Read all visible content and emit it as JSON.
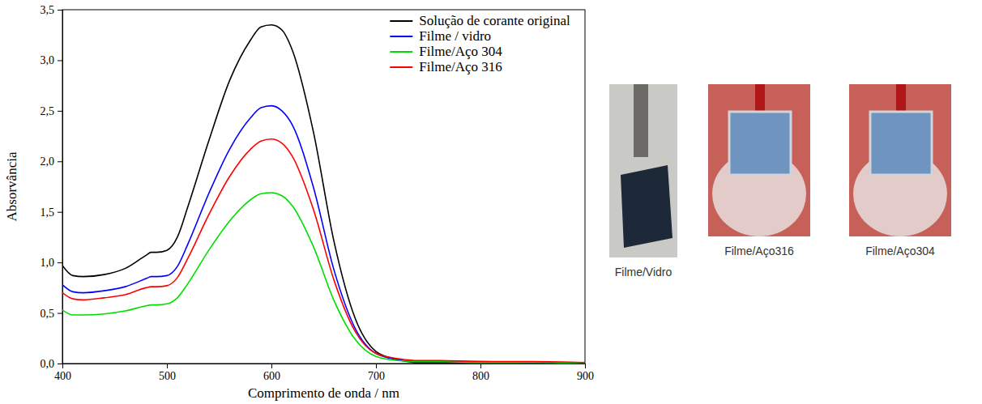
{
  "chart_data": {
    "type": "line",
    "x_label": "Comprimento de onda / nm",
    "y_label": "Absorvância",
    "x": [
      400,
      410,
      420,
      440,
      460,
      480,
      485,
      490,
      500,
      510,
      520,
      540,
      560,
      580,
      590,
      600,
      610,
      620,
      640,
      660,
      680,
      700,
      720,
      740,
      760,
      800,
      850,
      900
    ],
    "series": [
      {
        "name": "Solução de corante original",
        "color": "#000000",
        "values": [
          0.97,
          0.87,
          0.86,
          0.88,
          0.94,
          1.07,
          1.1,
          1.1,
          1.12,
          1.25,
          1.55,
          2.2,
          2.8,
          3.2,
          3.33,
          3.35,
          3.3,
          3.1,
          2.3,
          1.2,
          0.45,
          0.12,
          0.04,
          0.01,
          0.01,
          0.01,
          0.01,
          0.0
        ]
      },
      {
        "name": "Filme / vidro",
        "color": "#0000ff",
        "values": [
          0.78,
          0.71,
          0.7,
          0.72,
          0.76,
          0.84,
          0.86,
          0.86,
          0.87,
          0.96,
          1.18,
          1.68,
          2.12,
          2.43,
          2.53,
          2.55,
          2.5,
          2.36,
          1.75,
          0.92,
          0.35,
          0.1,
          0.04,
          0.02,
          0.02,
          0.02,
          0.01,
          0.0
        ]
      },
      {
        "name": "Filme/Aço 304",
        "color": "#00dd00",
        "values": [
          0.53,
          0.48,
          0.48,
          0.49,
          0.52,
          0.57,
          0.58,
          0.58,
          0.59,
          0.65,
          0.79,
          1.12,
          1.41,
          1.62,
          1.68,
          1.69,
          1.66,
          1.56,
          1.16,
          0.62,
          0.24,
          0.07,
          0.03,
          0.02,
          0.02,
          0.01,
          0.01,
          0.0
        ]
      },
      {
        "name": "Filme/Aço 316",
        "color": "#ff0000",
        "values": [
          0.7,
          0.64,
          0.63,
          0.65,
          0.68,
          0.75,
          0.76,
          0.76,
          0.77,
          0.85,
          1.04,
          1.47,
          1.85,
          2.12,
          2.2,
          2.22,
          2.18,
          2.05,
          1.53,
          0.82,
          0.32,
          0.1,
          0.05,
          0.03,
          0.03,
          0.02,
          0.02,
          0.01
        ]
      }
    ],
    "xlim": [
      400,
      900
    ],
    "xticks": [
      400,
      500,
      600,
      700,
      800,
      900
    ],
    "ylim": [
      0,
      3.5
    ],
    "yticks": [
      {
        "value": 0,
        "label": "0,0"
      },
      {
        "value": 0.5,
        "label": "0,5"
      },
      {
        "value": 1,
        "label": "1,0"
      },
      {
        "value": 1.5,
        "label": "1,5"
      },
      {
        "value": 2,
        "label": "2,0"
      },
      {
        "value": 2.5,
        "label": "2,5"
      },
      {
        "value": 3,
        "label": "3,0"
      },
      {
        "value": 3.5,
        "label": "3,5"
      }
    ],
    "grid": false,
    "legend": "upper right"
  },
  "images": [
    {
      "caption": "Filme/Vidro"
    },
    {
      "caption": "Filme/Aço316"
    },
    {
      "caption": "Filme/Aço304"
    }
  ]
}
